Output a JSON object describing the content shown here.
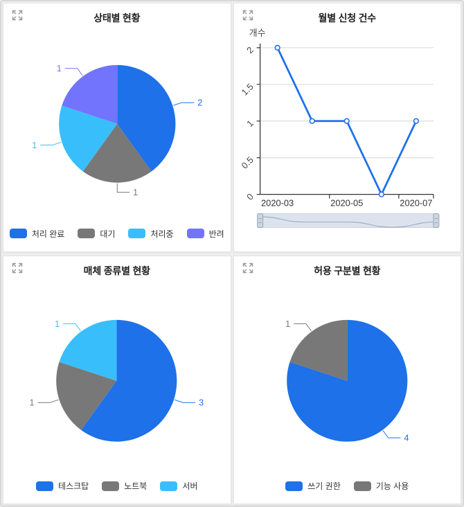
{
  "colors": {
    "blue": "#1E71E8",
    "gray": "#787878",
    "cyan": "#38BFFB",
    "purple": "#7274FD",
    "axis": "#333333",
    "grid_line": "#d6d6d6",
    "title_text": "#1f1f1f",
    "axis_label": "#444444",
    "slider_fill": "#dce3ee",
    "slider_border": "#c8d2e0",
    "slider_wave": "#a2aebe",
    "handle_fill": "#ccd5e2",
    "handle_border": "#94a3b8",
    "expand_icon": "#9b9b9b"
  },
  "chart_data": [
    {
      "id": "status-pie",
      "type": "pie",
      "title": "상태별 현황",
      "labels": [
        "처리 완료",
        "대기",
        "처리중",
        "반려"
      ],
      "values": [
        2,
        1,
        1,
        1
      ],
      "colors": [
        "blue",
        "gray",
        "cyan",
        "purple"
      ],
      "data_labels": [
        "2",
        "1",
        "1",
        "1"
      ],
      "legend_position": "bottom",
      "start_angle_deg": 0,
      "direction": "clockwise"
    },
    {
      "id": "monthly-line",
      "type": "line",
      "title": "월별 신청 건수",
      "ylabel": "개수",
      "x": [
        "2020-03",
        "2020-04",
        "2020-05",
        "2020-06",
        "2020-07"
      ],
      "values": [
        2,
        1,
        1,
        0,
        1
      ],
      "ylim": [
        0,
        2
      ],
      "yticks": [
        0,
        0.5,
        1,
        1.5,
        2
      ],
      "ytick_labels": [
        "0",
        "0.5",
        "1",
        "1.5",
        "2"
      ],
      "x_tick_labels": [
        "2020-03",
        "2020-05",
        "2020-07"
      ],
      "grid": true,
      "line_color": "blue",
      "marker": "hollow-circle",
      "has_datazoom_slider": true,
      "legend_position": "none"
    },
    {
      "id": "media-pie",
      "type": "pie",
      "title": "매체 종류별 현황",
      "labels": [
        "테스크탑",
        "노트북",
        "서버"
      ],
      "values": [
        3,
        1,
        1
      ],
      "colors": [
        "blue",
        "gray",
        "cyan"
      ],
      "data_labels": [
        "3",
        "1",
        "1"
      ],
      "legend_position": "bottom",
      "start_angle_deg": 0,
      "direction": "clockwise"
    },
    {
      "id": "permission-pie",
      "type": "pie",
      "title": "허용 구분별 현황",
      "labels": [
        "쓰기 권한",
        "기능 사용"
      ],
      "values": [
        4,
        1
      ],
      "colors": [
        "blue",
        "gray"
      ],
      "data_labels": [
        "4",
        "1"
      ],
      "legend_position": "bottom",
      "start_angle_deg": 0,
      "direction": "clockwise"
    }
  ]
}
